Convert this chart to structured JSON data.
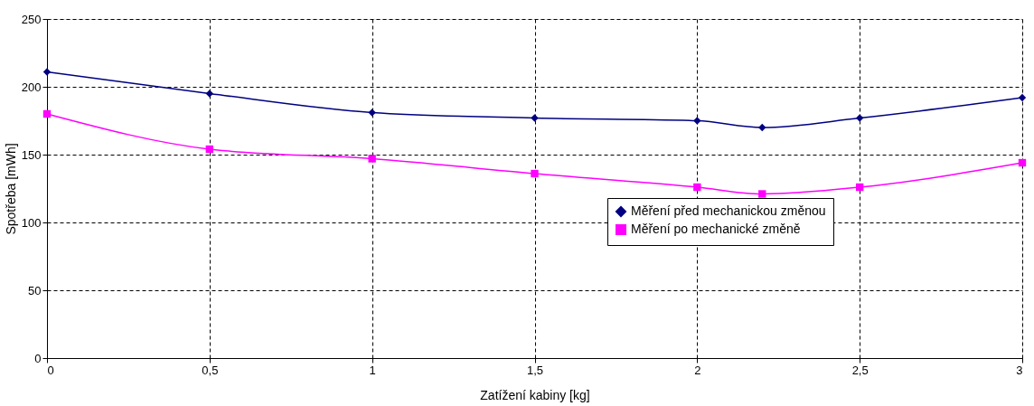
{
  "chart_data": {
    "type": "line",
    "xlabel": "Zatížení kabiny [kg]",
    "ylabel": "Spotřeba [mWh]",
    "x": [
      0,
      0.5,
      1,
      1.5,
      2,
      2.2,
      2.5,
      3
    ],
    "xlim": [
      0,
      3
    ],
    "xticks": [
      0,
      {
        "value": 0.5,
        "label": "0,5"
      },
      1,
      {
        "value": 1.5,
        "label": "1,5"
      },
      2,
      {
        "value": 2.5,
        "label": "2,5"
      },
      3
    ],
    "ylim": [
      0,
      250
    ],
    "yticks": [
      0,
      50,
      100,
      150,
      200,
      250
    ],
    "grid": true,
    "legend": "right",
    "series": [
      {
        "name": "Měření před mechanickou změnou",
        "color": "#000080",
        "marker": "diamond",
        "values": [
          211,
          195,
          181,
          177,
          175,
          170,
          177,
          192
        ]
      },
      {
        "name": "Měření po mechanické změně",
        "color": "#ff00ff",
        "marker": "square",
        "values": [
          180,
          154,
          147,
          136,
          126,
          121,
          126,
          144
        ]
      }
    ]
  }
}
